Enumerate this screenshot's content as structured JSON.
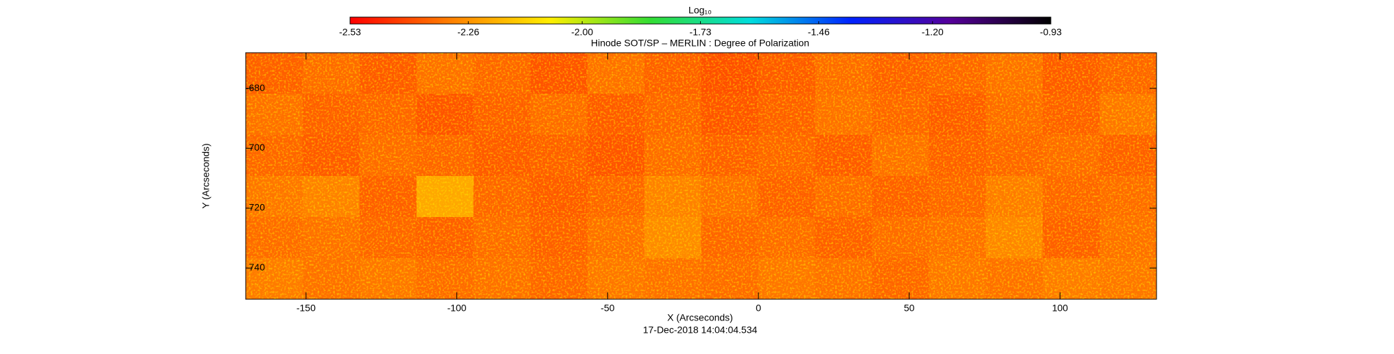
{
  "chart_data": {
    "type": "heatmap",
    "title": "Hinode SOT/SP – MERLIN : Degree of Polarization",
    "xlabel": "X (Arcseconds)",
    "ylabel": "Y (Arcseconds)",
    "footer": "17-Dec-2018 14:04:04.534",
    "colorbar_label": "Log₁₀",
    "colormap": [
      "#ff0000",
      "#ff7f00",
      "#ffee00",
      "#33dd33",
      "#00dddd",
      "#0022ff",
      "#550099",
      "#000000"
    ],
    "zlim": [
      -2.53,
      -0.93
    ],
    "zticks": [
      -2.53,
      -2.26,
      {
        "value": -2,
        "label": "-2.00"
      },
      -1.73,
      -1.46,
      {
        "value": -1.2,
        "label": "-1.20"
      },
      -0.93
    ],
    "xlim": [
      -170,
      132
    ],
    "ylim": [
      -750.4,
      -668.1
    ],
    "xticks": [
      -150,
      -100,
      -50,
      0,
      50,
      100
    ],
    "yticks": [
      -740,
      -720,
      -700,
      -680
    ],
    "z": [
      [
        -2.36,
        -2.34,
        -2.37,
        -2.33,
        -2.35,
        -2.38,
        -2.33,
        -2.36,
        -2.39,
        -2.37,
        -2.34,
        -2.36,
        -2.35,
        -2.33,
        -2.37,
        -2.35
      ],
      [
        -2.33,
        -2.36,
        -2.35,
        -2.38,
        -2.36,
        -2.34,
        -2.37,
        -2.35,
        -2.38,
        -2.36,
        -2.33,
        -2.35,
        -2.37,
        -2.34,
        -2.36,
        -2.32
      ],
      [
        -2.35,
        -2.37,
        -2.34,
        -2.35,
        -2.37,
        -2.36,
        -2.38,
        -2.34,
        -2.36,
        -2.35,
        -2.37,
        -2.33,
        -2.36,
        -2.35,
        -2.34,
        -2.36
      ],
      [
        -2.32,
        -2.3,
        -2.36,
        -2.22,
        -2.35,
        -2.37,
        -2.35,
        -2.3,
        -2.33,
        -2.36,
        -2.34,
        -2.36,
        -2.35,
        -2.31,
        -2.35,
        -2.34
      ],
      [
        -2.34,
        -2.33,
        -2.35,
        -2.36,
        -2.34,
        -2.36,
        -2.33,
        -2.28,
        -2.35,
        -2.34,
        -2.36,
        -2.34,
        -2.33,
        -2.29,
        -2.36,
        -2.33
      ],
      [
        -2.31,
        -2.33,
        -2.32,
        -2.34,
        -2.33,
        -2.35,
        -2.32,
        -2.33,
        -2.34,
        -2.32,
        -2.33,
        -2.35,
        -2.32,
        -2.33,
        -2.31,
        -2.32
      ]
    ]
  }
}
